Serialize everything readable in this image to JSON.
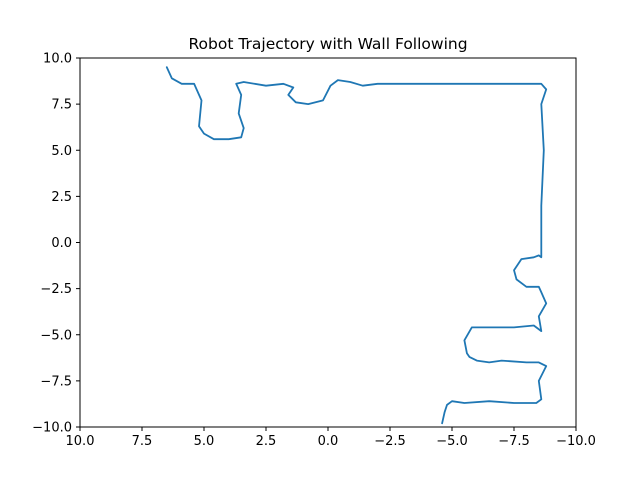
{
  "chart_data": {
    "type": "line",
    "title": "Robot Trajectory with Wall Following",
    "xlabel": "",
    "ylabel": "",
    "xlim": [
      10,
      -10
    ],
    "ylim": [
      -10,
      10
    ],
    "x_inverted": true,
    "grid": false,
    "xticks": [
      "10.0",
      "7.5",
      "5.0",
      "2.5",
      "0.0",
      "−2.5",
      "−5.0",
      "−7.5",
      "−10.0"
    ],
    "xtick_values": [
      10,
      7.5,
      5,
      2.5,
      0,
      -2.5,
      -5,
      -7.5,
      -10
    ],
    "yticks": [
      "10.0",
      "7.5",
      "5.0",
      "2.5",
      "0.0",
      "−2.5",
      "−5.0",
      "−7.5",
      "−10.0"
    ],
    "ytick_values": [
      10,
      7.5,
      5,
      2.5,
      0,
      -2.5,
      -5,
      -7.5,
      -10
    ],
    "line_color": "#1f77b4",
    "series": [
      {
        "x": [
          6.5,
          6.3,
          5.9,
          5.4,
          5.3,
          5.1,
          5.2,
          5.0,
          4.6,
          4.0,
          3.5,
          3.4,
          3.6,
          3.5,
          3.7,
          3.4,
          2.5,
          1.8,
          1.4,
          1.6,
          1.3,
          0.8,
          0.2,
          -0.1,
          -0.4,
          -0.9,
          -1.4,
          -2.0,
          -3.0,
          -4.0,
          -5.5,
          -7.0,
          -8.0,
          -8.6,
          -8.8,
          -8.6,
          -8.7,
          -8.6,
          -8.6,
          -8.6,
          -8.5,
          -8.3,
          -7.8,
          -7.5,
          -7.6,
          -8.0,
          -8.5,
          -8.6,
          -8.8,
          -8.5,
          -8.6,
          -8.3,
          -7.5,
          -6.5,
          -5.8,
          -5.5,
          -5.6,
          -5.7,
          -6.0,
          -6.5,
          -7.0,
          -8.0,
          -8.5,
          -8.8,
          -8.5,
          -8.6,
          -8.4,
          -7.5,
          -6.5,
          -5.5,
          -5.0,
          -4.8,
          -4.7,
          -4.6
        ],
        "y": [
          9.5,
          8.9,
          8.6,
          8.6,
          8.3,
          7.7,
          6.3,
          5.9,
          5.6,
          5.6,
          5.7,
          6.2,
          7.0,
          8.0,
          8.6,
          8.7,
          8.5,
          8.6,
          8.4,
          8.0,
          7.6,
          7.5,
          7.7,
          8.5,
          8.8,
          8.7,
          8.5,
          8.6,
          8.6,
          8.6,
          8.6,
          8.6,
          8.6,
          8.6,
          8.3,
          7.5,
          5.0,
          2.0,
          -0.5,
          -0.8,
          -0.7,
          -0.8,
          -0.9,
          -1.5,
          -2.0,
          -2.4,
          -2.4,
          -2.7,
          -3.3,
          -4.0,
          -4.8,
          -4.5,
          -4.6,
          -4.6,
          -4.6,
          -5.3,
          -6.0,
          -6.2,
          -6.4,
          -6.5,
          -6.4,
          -6.5,
          -6.5,
          -6.7,
          -7.5,
          -8.5,
          -8.7,
          -8.7,
          -8.6,
          -8.7,
          -8.6,
          -8.8,
          -9.2,
          -9.8
        ]
      }
    ]
  }
}
